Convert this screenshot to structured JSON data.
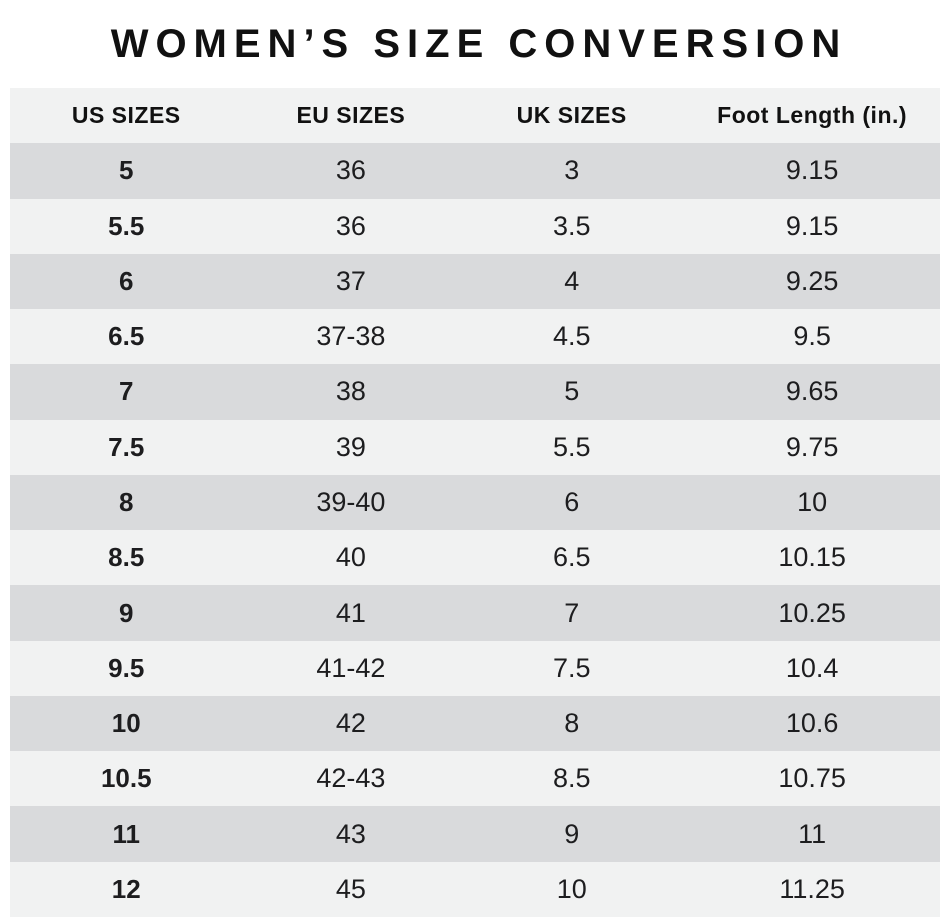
{
  "title": "WOMEN’S SIZE CONVERSION",
  "chart_data": {
    "type": "table",
    "title": "WOMEN’S SIZE CONVERSION",
    "columns": [
      "US SIZES",
      "EU SIZES",
      "UK SIZES",
      "Foot Length (in.)"
    ],
    "rows": [
      [
        "5",
        "36",
        "3",
        "9.15"
      ],
      [
        "5.5",
        "36",
        "3.5",
        "9.15"
      ],
      [
        "6",
        "37",
        "4",
        "9.25"
      ],
      [
        "6.5",
        "37-38",
        "4.5",
        "9.5"
      ],
      [
        "7",
        "38",
        "5",
        "9.65"
      ],
      [
        "7.5",
        "39",
        "5.5",
        "9.75"
      ],
      [
        "8",
        "39-40",
        "6",
        "10"
      ],
      [
        "8.5",
        "40",
        "6.5",
        "10.15"
      ],
      [
        "9",
        "41",
        "7",
        "10.25"
      ],
      [
        "9.5",
        "41-42",
        "7.5",
        "10.4"
      ],
      [
        "10",
        "42",
        "8",
        "10.6"
      ],
      [
        "10.5",
        "42-43",
        "8.5",
        "10.75"
      ],
      [
        "11",
        "43",
        "9",
        "11"
      ],
      [
        "12",
        "45",
        "10",
        "11.25"
      ]
    ],
    "layout_hints": {
      "alternating_rows": true,
      "first_data_row_shade": "dark",
      "bold_column": "US SIZES"
    }
  },
  "colors": {
    "page_bg": "#ffffff",
    "row_light": "#f1f2f2",
    "row_dark": "#d9dadc",
    "header_bg": "#f1f2f2",
    "text": "#1d1d1f",
    "text_strong": "#111111"
  }
}
